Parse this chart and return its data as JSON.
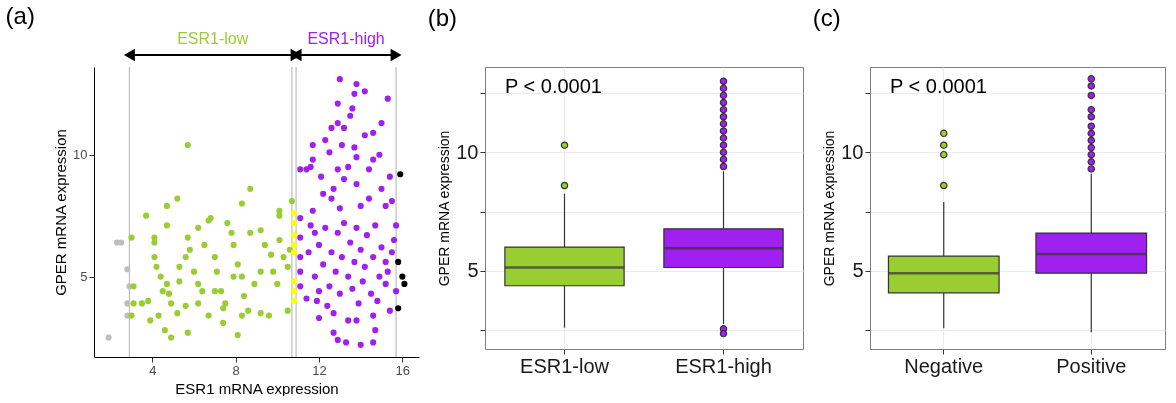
{
  "chart_data": [
    {
      "type": "scatter",
      "title": "(a)",
      "xlabel": "ESR1 mRNA expression",
      "ylabel": "GPER mRNA expression",
      "xlim": [
        1.2,
        16.8
      ],
      "ylim": [
        1.7,
        13.6
      ],
      "xticks": [
        4,
        8,
        12,
        16
      ],
      "yticks": [
        5,
        10
      ],
      "grid": false,
      "marker": "circle",
      "annotations": [
        "ESR1-low",
        "ESR1-high"
      ],
      "ref_lines": [
        {
          "axis": "x",
          "value": 2.9,
          "color": "#bebebe"
        },
        {
          "axis": "x",
          "value": 10.7,
          "color": "#bebebe"
        },
        {
          "axis": "x",
          "value": 10.9,
          "color": "#bebebe"
        },
        {
          "axis": "x",
          "value": 15.7,
          "color": "#bebebe"
        }
      ],
      "series": [
        {
          "color": "#bebebe",
          "x": [
            1.9,
            2.3,
            2.5,
            2.8,
            2.9,
            2.8,
            2.8
          ],
          "values": [
            2.5,
            6.4,
            6.4,
            5.3,
            4.6,
            3.9,
            3.4
          ]
        },
        {
          "color": "#9acd32",
          "x": [
            3.0,
            3.1,
            3.1,
            3.0,
            3.7,
            4.7,
            5.2,
            4.7,
            4.1,
            4.1,
            4.1,
            4.2,
            3.8,
            3.9,
            4.3,
            4.6,
            4.9,
            4.7,
            4.8,
            4.9,
            5.2,
            5.6,
            5.3,
            5.6,
            5.7,
            5.8,
            6.0,
            6.2,
            6.2,
            6.5,
            6.7,
            6.8,
            7.0,
            7.1,
            7.3,
            7.4,
            7.6,
            7.8,
            7.9,
            8.1,
            8.3,
            8.4,
            8.6,
            8.7,
            8.7,
            8.3,
            9.2,
            9.4,
            9.7,
            9.8,
            10.0,
            10.1,
            10.3,
            10.5,
            10.5,
            10.6,
            10.7,
            10.1,
            10.1,
            9.6,
            9.2,
            8.3,
            8.1,
            7.4,
            5.7,
            5.7,
            6.7,
            6.2,
            6.4,
            7.5,
            8.9,
            9.2,
            7.9,
            7.0,
            5.3,
            4.4,
            4.5,
            3.5
          ],
          "values": [
            6.6,
            4.6,
            3.9,
            3.4,
            7.5,
            7.9,
            8.2,
            7.1,
            6.6,
            6.4,
            5.8,
            5.4,
            4.0,
            3.2,
            3.4,
            2.8,
            2.5,
            4.7,
            4.3,
            3.9,
            3.5,
            3.8,
            5.4,
            5.8,
            6.6,
            6.1,
            5.2,
            4.7,
            7.0,
            6.3,
            7.3,
            7.4,
            5.8,
            5.2,
            4.4,
            3.7,
            7.2,
            6.8,
            6.3,
            5.5,
            5.0,
            4.2,
            3.6,
            6.8,
            8.6,
            8.0,
            6.9,
            6.3,
            5.9,
            5.2,
            4.7,
            6.5,
            5.8,
            3.6,
            5.4,
            6.1,
            8.1,
            7.7,
            7.5,
            3.4,
            3.5,
            3.4,
            2.6,
            3.1,
            2.7,
            10.4,
            3.4,
            3.9,
            4.4,
            3.9,
            4.7,
            5.2,
            5.0,
            4.4,
            4.8,
            5.0,
            4.4,
            3.9
          ]
        },
        {
          "color": "#ffff00",
          "x": [
            10.8,
            10.8,
            10.8,
            10.8,
            10.8,
            10.8,
            10.8,
            10.8
          ],
          "values": [
            7.6,
            7.2,
            6.7,
            6.3,
            6.0,
            4.8,
            4.4,
            4.0
          ]
        },
        {
          "color": "#a020f0",
          "x": [
            13.0,
            13.8,
            14.2,
            13.7,
            15.3,
            12.9,
            13.6,
            13.5,
            12.9,
            15.0,
            13.2,
            12.6,
            14.6,
            14.2,
            12.3,
            13.1,
            11.7,
            12.5,
            13.7,
            14.9,
            13.8,
            11.7,
            14.6,
            11.6,
            11.1,
            11.4,
            12.9,
            13.4,
            12.1,
            13.2,
            14.4,
            15.4,
            12.7,
            13.8,
            15.0,
            12.2,
            12.6,
            14.4,
            15.5,
            11.7,
            13.0,
            14.0,
            15.2,
            11.1,
            11.6,
            15.7,
            11.1,
            15.6,
            11.1,
            11.1,
            11.1,
            11.4,
            11.9,
            12.0,
            12.7,
            13.4,
            13.8,
            14.6,
            15.4,
            15.7,
            15.3,
            14.7,
            12.7,
            12.9,
            13.3,
            14.0,
            14.6,
            11.5,
            11.8,
            11.8,
            12.0,
            12.2,
            12.3,
            12.5,
            12.6,
            12.8,
            12.9,
            13.0,
            13.1,
            13.2,
            13.4,
            13.5,
            13.6,
            13.7,
            13.8,
            14.0,
            14.1,
            14.2,
            14.3,
            14.5,
            14.6,
            14.7,
            14.9,
            15.0,
            15.2,
            15.2,
            15.5,
            12.4,
            13.9,
            14.8,
            12.0
          ],
          "values": [
            13.1,
            12.9,
            12.6,
            12.5,
            12.3,
            12.1,
            11.9,
            11.6,
            11.3,
            11.3,
            11.1,
            11.1,
            10.9,
            10.8,
            10.6,
            10.4,
            10.4,
            10.1,
            10.3,
            10.0,
            9.9,
            9.8,
            9.8,
            9.5,
            9.4,
            9.4,
            9.4,
            9.5,
            9.1,
            9.0,
            9.4,
            9.1,
            8.6,
            8.8,
            8.6,
            8.4,
            8.2,
            8.2,
            8.1,
            7.7,
            7.8,
            7.9,
            7.9,
            7.4,
            7.1,
            7.1,
            6.6,
            6.5,
            5.8,
            5.2,
            4.6,
            4.1,
            4.0,
            3.3,
            3.5,
            3.2,
            3.2,
            3.4,
            3.6,
            4.4,
            5.2,
            2.8,
            2.7,
            2.4,
            2.3,
            2.2,
            2.3,
            6.0,
            6.8,
            5.0,
            6.3,
            5.5,
            7.0,
            4.6,
            6.0,
            5.2,
            6.8,
            4.3,
            5.8,
            7.2,
            5.0,
            6.4,
            4.5,
            5.6,
            7.0,
            6.1,
            4.8,
            5.4,
            6.7,
            4.3,
            5.8,
            7.1,
            5.0,
            6.2,
            4.7,
            5.6,
            6.0,
            3.8,
            3.9,
            4.0,
            4.4
          ]
        },
        {
          "color": "#000000",
          "x": [
            15.9,
            15.8,
            16.0,
            16.1,
            15.8
          ],
          "values": [
            9.2,
            5.6,
            5.0,
            4.7,
            3.7
          ]
        }
      ]
    },
    {
      "type": "box",
      "title": "(b)",
      "ylabel": "GPER mRNA expression",
      "categories": [
        "ESR1-low",
        "ESR1-high"
      ],
      "colors": [
        "#9acd32",
        "#a020f0"
      ],
      "ylim": [
        1.7,
        13.6
      ],
      "yticks": [
        {
          "value": 2.5,
          "label": null
        },
        5,
        {
          "value": 7.5,
          "label": null
        },
        10,
        {
          "value": 12.5,
          "label": null
        }
      ],
      "grid": true,
      "annotations": [
        "P < 0.0001"
      ],
      "boxes": [
        {
          "low": 2.6,
          "q1": 4.37,
          "median": 5.14,
          "q3": 6.0,
          "high": 8.25,
          "outliers": [
            8.6,
            10.3
          ]
        },
        {
          "low": 2.75,
          "q1": 5.14,
          "median": 5.95,
          "q3": 6.77,
          "high": 9.2,
          "outliers": [
            2.55,
            2.35,
            9.4,
            9.7,
            10.0,
            10.3,
            10.6,
            10.9,
            11.2,
            11.5,
            11.8,
            12.1,
            12.4,
            12.7,
            13.0
          ]
        }
      ]
    },
    {
      "type": "box",
      "title": "(c)",
      "ylabel": "GPER mRNA expression",
      "categories": [
        "Negative",
        "Positive"
      ],
      "colors": [
        "#9acd32",
        "#a020f0"
      ],
      "ylim": [
        1.7,
        13.6
      ],
      "yticks": [
        {
          "value": 2.5,
          "label": null
        },
        5,
        {
          "value": 7.5,
          "label": null
        },
        10,
        {
          "value": 12.5,
          "label": null
        }
      ],
      "grid": true,
      "annotations": [
        "P < 0.0001"
      ],
      "boxes": [
        {
          "low": 2.58,
          "q1": 4.07,
          "median": 4.9,
          "q3": 5.62,
          "high": 7.9,
          "outliers": [
            8.6,
            9.9,
            10.3,
            10.8
          ]
        },
        {
          "low": 2.41,
          "q1": 4.9,
          "median": 5.71,
          "q3": 6.59,
          "high": 9.1,
          "outliers": [
            9.3,
            9.6,
            9.9,
            10.2,
            10.5,
            10.8,
            11.1,
            11.5,
            11.8,
            12.4,
            12.8,
            13.1
          ]
        }
      ]
    }
  ]
}
